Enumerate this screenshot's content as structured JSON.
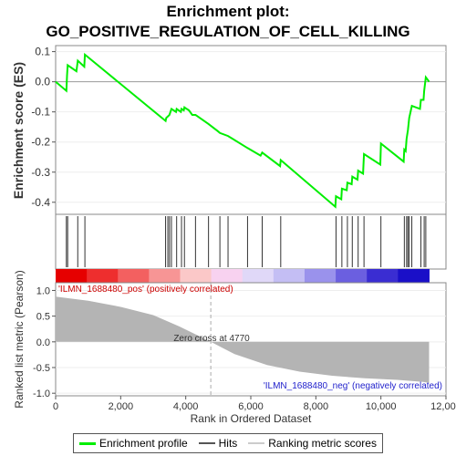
{
  "chart_data": {
    "type": "line",
    "title_line1": "Enrichment plot:",
    "title_line2": "GO_POSITIVE_REGULATION_OF_CELL_KILLING",
    "top_panel": {
      "ylabel": "Enrichment score (ES)",
      "ylim": [
        -0.44,
        0.12
      ],
      "yticks": [
        "0.1",
        "0.0",
        "-0.1",
        "-0.2",
        "-0.3",
        "-0.4"
      ],
      "ytick_values": [
        0.1,
        0.0,
        -0.1,
        -0.2,
        -0.3,
        -0.4
      ],
      "series": [
        {
          "name": "Enrichment profile",
          "color": "#00ee00",
          "points": [
            [
              0,
              0.0
            ],
            [
              330,
              -0.03
            ],
            [
              350,
              0.02
            ],
            [
              370,
              0.055
            ],
            [
              640,
              0.035
            ],
            [
              680,
              0.07
            ],
            [
              880,
              0.05
            ],
            [
              900,
              0.09
            ],
            [
              3380,
              -0.13
            ],
            [
              3400,
              -0.12
            ],
            [
              3450,
              -0.115
            ],
            [
              3500,
              -0.11
            ],
            [
              3560,
              -0.09
            ],
            [
              3700,
              -0.1
            ],
            [
              3720,
              -0.09
            ],
            [
              3850,
              -0.1
            ],
            [
              3870,
              -0.09
            ],
            [
              3940,
              -0.095
            ],
            [
              3960,
              -0.085
            ],
            [
              4030,
              -0.09
            ],
            [
              4100,
              -0.095
            ],
            [
              4200,
              -0.11
            ],
            [
              4300,
              -0.11
            ],
            [
              4700,
              -0.14
            ],
            [
              5000,
              -0.165
            ],
            [
              5050,
              -0.17
            ],
            [
              5300,
              -0.18
            ],
            [
              5900,
              -0.22
            ],
            [
              6300,
              -0.245
            ],
            [
              6350,
              -0.235
            ],
            [
              6900,
              -0.28
            ],
            [
              6920,
              -0.26
            ],
            [
              8600,
              -0.415
            ],
            [
              8620,
              -0.38
            ],
            [
              8780,
              -0.39
            ],
            [
              8800,
              -0.355
            ],
            [
              8950,
              -0.36
            ],
            [
              8970,
              -0.335
            ],
            [
              9100,
              -0.34
            ],
            [
              9120,
              -0.315
            ],
            [
              9280,
              -0.325
            ],
            [
              9300,
              -0.295
            ],
            [
              9450,
              -0.305
            ],
            [
              9480,
              -0.24
            ],
            [
              9980,
              -0.275
            ],
            [
              10000,
              -0.205
            ],
            [
              10700,
              -0.265
            ],
            [
              10720,
              -0.225
            ],
            [
              10760,
              -0.23
            ],
            [
              10790,
              -0.19
            ],
            [
              10830,
              -0.16
            ],
            [
              10870,
              -0.12
            ],
            [
              10950,
              -0.08
            ],
            [
              11200,
              -0.09
            ],
            [
              11230,
              -0.06
            ],
            [
              11310,
              -0.06
            ],
            [
              11330,
              -0.03
            ],
            [
              11380,
              0.015
            ],
            [
              11480,
              0.0
            ]
          ]
        }
      ]
    },
    "hits": [
      330,
      370,
      680,
      900,
      3380,
      3450,
      3500,
      3560,
      3720,
      3870,
      3960,
      4300,
      4700,
      5050,
      5300,
      5900,
      6350,
      6920,
      8620,
      8800,
      8970,
      9120,
      9300,
      9480,
      10000,
      10720,
      10790,
      10830,
      10870,
      10950,
      11230,
      11330,
      11380
    ],
    "heatmap_colors": [
      "#e60000",
      "#ee2e2e",
      "#f36060",
      "#f79595",
      "#fbc8c8",
      "#f8d2f0",
      "#e0d8f8",
      "#c4bef4",
      "#9a92ec",
      "#6b5fe0",
      "#3a2dd2",
      "#1a0fc8"
    ],
    "bottom_panel": {
      "ylabel": "Ranked list metric (Pearson)",
      "ylim": [
        -1.05,
        1.15
      ],
      "yticks": [
        "1.0",
        "0.5",
        "0.0",
        "-0.5",
        "-1.0"
      ],
      "ytick_values": [
        1.0,
        0.5,
        0.0,
        -0.5,
        -1.0
      ],
      "metric_profile": [
        [
          0,
          0.88
        ],
        [
          1000,
          0.8
        ],
        [
          2000,
          0.68
        ],
        [
          3000,
          0.52
        ],
        [
          3800,
          0.3
        ],
        [
          4770,
          0.0
        ],
        [
          5500,
          -0.24
        ],
        [
          6500,
          -0.45
        ],
        [
          7500,
          -0.58
        ],
        [
          8500,
          -0.66
        ],
        [
          9500,
          -0.71
        ],
        [
          10500,
          -0.74
        ],
        [
          11300,
          -0.78
        ],
        [
          11480,
          -0.8
        ]
      ],
      "metric_color": "#b4b4b4",
      "pos_label": "'ILMN_1688480_pos' (positively correlated)",
      "neg_label": "'ILMN_1688480_neg' (negatively correlated)",
      "zero_cross_label": "Zero cross at 4770",
      "zero_cross": 4770
    },
    "x_axis": {
      "xlabel": "Rank in Ordered Dataset",
      "xlim": [
        0,
        12000
      ],
      "xticks": [
        "0",
        "2,000",
        "4,000",
        "6,000",
        "8,000",
        "10,000",
        "12,000"
      ],
      "xtick_values": [
        0,
        2000,
        4000,
        6000,
        8000,
        10000,
        12000
      ],
      "dataset_size": 11480
    },
    "legend": [
      {
        "label": "Enrichment profile",
        "color": "#00ee00"
      },
      {
        "label": "Hits",
        "color": "#555555"
      },
      {
        "label": "Ranking metric scores",
        "color": "#cccccc"
      }
    ]
  }
}
